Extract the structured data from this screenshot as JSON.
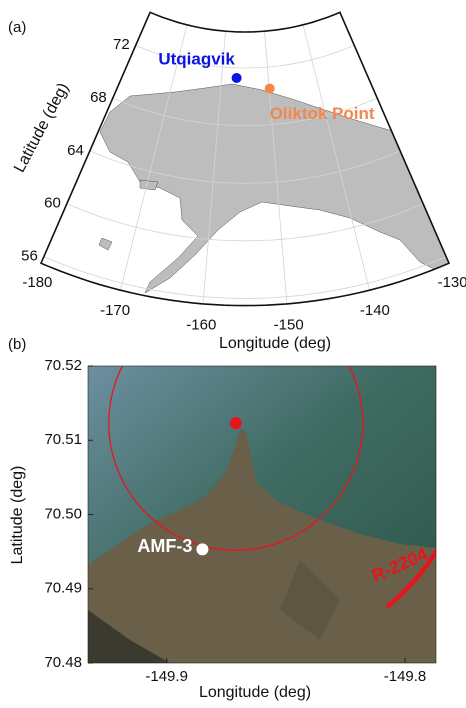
{
  "chart_data": [
    {
      "type": "map",
      "panel_label": "(a)",
      "x_label": "Longitude (deg)",
      "y_label": "Latitude (deg)",
      "xlim": [
        -180,
        -130
      ],
      "ylim": [
        55.5,
        74.5
      ],
      "xticks": [
        -180,
        -170,
        -160,
        -150,
        -140,
        -130
      ],
      "yticks": [
        56,
        60,
        64,
        68,
        72
      ],
      "grid": true,
      "land_color": "#bdbdbd",
      "points": [
        {
          "name": "Utqiagvik",
          "color": "#0a14e6",
          "lon": -156.8,
          "lat": 71.3
        },
        {
          "name": "Oliktok Point",
          "color": "#f4874b",
          "lon": -149.9,
          "lat": 70.5
        }
      ]
    },
    {
      "type": "map",
      "panel_label": "(b)",
      "x_label": "Longitude (deg)",
      "y_label": "Latitude (deg)",
      "xlim": [
        -149.933,
        -149.787
      ],
      "ylim": [
        70.48,
        70.52
      ],
      "xticks": [
        -149.9,
        -149.8
      ],
      "yticks": [
        70.48,
        70.49,
        {
          "value": 70.5,
          "label": "70.50"
        },
        70.51,
        70.52
      ],
      "annotation": "R-2204",
      "annotation_color": "#e8141c",
      "points": [
        {
          "color": "#e8141c",
          "lon": -149.871,
          "lat": 70.5123
        },
        {
          "name": "AMF-3",
          "color": "#ffffff",
          "lon": -149.885,
          "lat": 70.4953
        }
      ]
    }
  ]
}
